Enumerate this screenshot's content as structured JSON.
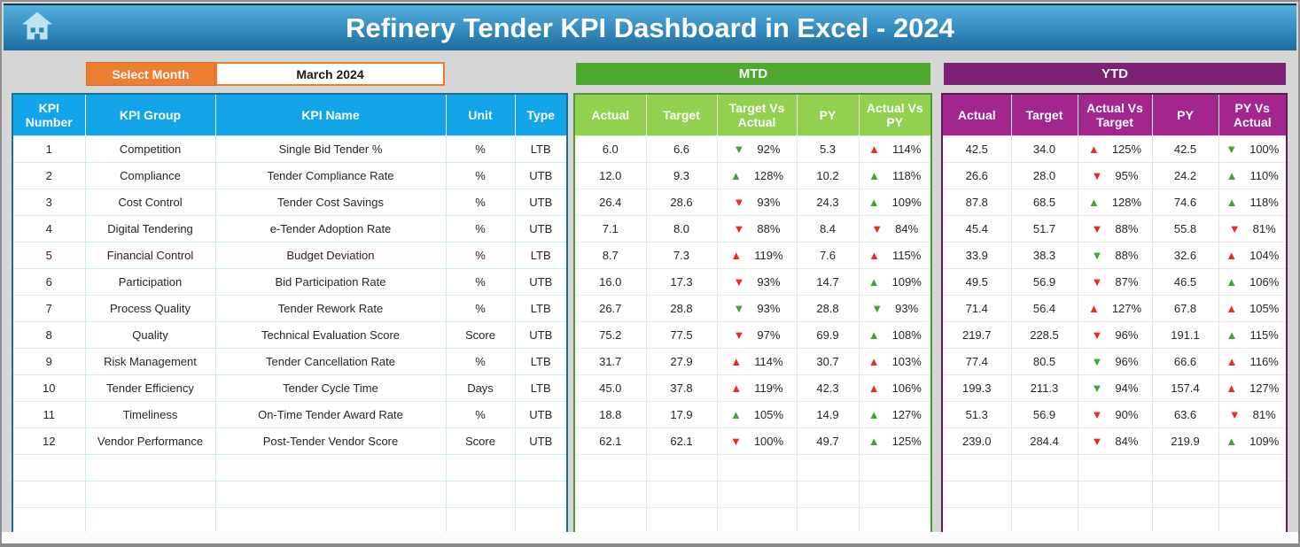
{
  "header": {
    "title": "Refinery Tender KPI Dashboard in Excel - 2024"
  },
  "controls": {
    "select_month_label": "Select Month",
    "selected_month": "March 2024"
  },
  "sections": {
    "mtd_label": "MTD",
    "ytd_label": "YTD"
  },
  "kpi_table": {
    "headers": [
      "KPI Number",
      "KPI Group",
      "KPI Name",
      "Unit",
      "Type"
    ],
    "mtd_headers": [
      "Actual",
      "Target",
      "Target Vs Actual",
      "PY",
      "Actual Vs PY"
    ],
    "ytd_headers": [
      "Actual",
      "Target",
      "Actual Vs Target",
      "PY",
      "PY Vs Actual"
    ],
    "empty_rows": 3,
    "rows": [
      {
        "num": "1",
        "group": "Competition",
        "name": "Single Bid Tender %",
        "unit": "%",
        "type": "LTB",
        "mtd": {
          "actual": "6.0",
          "target": "6.6",
          "tva": {
            "dir": "down",
            "color": "green",
            "value": "92%"
          },
          "py": "5.3",
          "avp": {
            "dir": "up",
            "color": "red",
            "value": "114%"
          }
        },
        "ytd": {
          "actual": "42.5",
          "target": "34.0",
          "avt": {
            "dir": "up",
            "color": "red",
            "value": "125%"
          },
          "py": "42.5",
          "pva": {
            "dir": "down",
            "color": "green",
            "value": "100%"
          }
        }
      },
      {
        "num": "2",
        "group": "Compliance",
        "name": "Tender Compliance Rate",
        "unit": "%",
        "type": "UTB",
        "mtd": {
          "actual": "12.0",
          "target": "9.3",
          "tva": {
            "dir": "up",
            "color": "green",
            "value": "128%"
          },
          "py": "10.2",
          "avp": {
            "dir": "up",
            "color": "green",
            "value": "118%"
          }
        },
        "ytd": {
          "actual": "26.6",
          "target": "28.0",
          "avt": {
            "dir": "down",
            "color": "red",
            "value": "95%"
          },
          "py": "24.2",
          "pva": {
            "dir": "up",
            "color": "green",
            "value": "110%"
          }
        }
      },
      {
        "num": "3",
        "group": "Cost Control",
        "name": "Tender Cost Savings",
        "unit": "%",
        "type": "UTB",
        "mtd": {
          "actual": "26.4",
          "target": "28.6",
          "tva": {
            "dir": "down",
            "color": "red",
            "value": "93%"
          },
          "py": "24.3",
          "avp": {
            "dir": "up",
            "color": "green",
            "value": "109%"
          }
        },
        "ytd": {
          "actual": "87.8",
          "target": "68.5",
          "avt": {
            "dir": "up",
            "color": "green",
            "value": "128%"
          },
          "py": "74.6",
          "pva": {
            "dir": "up",
            "color": "green",
            "value": "118%"
          }
        }
      },
      {
        "num": "4",
        "group": "Digital Tendering",
        "name": "e-Tender Adoption Rate",
        "unit": "%",
        "type": "UTB",
        "mtd": {
          "actual": "7.1",
          "target": "8.0",
          "tva": {
            "dir": "down",
            "color": "red",
            "value": "88%"
          },
          "py": "8.4",
          "avp": {
            "dir": "down",
            "color": "red",
            "value": "84%"
          }
        },
        "ytd": {
          "actual": "45.4",
          "target": "51.7",
          "avt": {
            "dir": "down",
            "color": "red",
            "value": "88%"
          },
          "py": "55.8",
          "pva": {
            "dir": "down",
            "color": "red",
            "value": "81%"
          }
        }
      },
      {
        "num": "5",
        "group": "Financial Control",
        "name": "Budget Deviation",
        "unit": "%",
        "type": "LTB",
        "mtd": {
          "actual": "8.7",
          "target": "7.3",
          "tva": {
            "dir": "up",
            "color": "red",
            "value": "119%"
          },
          "py": "7.6",
          "avp": {
            "dir": "up",
            "color": "red",
            "value": "115%"
          }
        },
        "ytd": {
          "actual": "33.9",
          "target": "38.3",
          "avt": {
            "dir": "down",
            "color": "green",
            "value": "88%"
          },
          "py": "32.6",
          "pva": {
            "dir": "up",
            "color": "red",
            "value": "104%"
          }
        }
      },
      {
        "num": "6",
        "group": "Participation",
        "name": "Bid Participation Rate",
        "unit": "%",
        "type": "UTB",
        "mtd": {
          "actual": "16.0",
          "target": "17.3",
          "tva": {
            "dir": "down",
            "color": "red",
            "value": "93%"
          },
          "py": "14.7",
          "avp": {
            "dir": "up",
            "color": "green",
            "value": "109%"
          }
        },
        "ytd": {
          "actual": "49.5",
          "target": "56.9",
          "avt": {
            "dir": "down",
            "color": "red",
            "value": "87%"
          },
          "py": "46.5",
          "pva": {
            "dir": "up",
            "color": "green",
            "value": "106%"
          }
        }
      },
      {
        "num": "7",
        "group": "Process Quality",
        "name": "Tender Rework Rate",
        "unit": "%",
        "type": "LTB",
        "mtd": {
          "actual": "26.7",
          "target": "28.8",
          "tva": {
            "dir": "down",
            "color": "green",
            "value": "93%"
          },
          "py": "28.8",
          "avp": {
            "dir": "down",
            "color": "green",
            "value": "93%"
          }
        },
        "ytd": {
          "actual": "71.4",
          "target": "56.4",
          "avt": {
            "dir": "up",
            "color": "red",
            "value": "127%"
          },
          "py": "67.8",
          "pva": {
            "dir": "up",
            "color": "red",
            "value": "105%"
          }
        }
      },
      {
        "num": "8",
        "group": "Quality",
        "name": "Technical Evaluation Score",
        "unit": "Score",
        "type": "UTB",
        "mtd": {
          "actual": "75.2",
          "target": "77.5",
          "tva": {
            "dir": "down",
            "color": "red",
            "value": "97%"
          },
          "py": "69.9",
          "avp": {
            "dir": "up",
            "color": "green",
            "value": "108%"
          }
        },
        "ytd": {
          "actual": "219.7",
          "target": "228.5",
          "avt": {
            "dir": "down",
            "color": "red",
            "value": "96%"
          },
          "py": "191.1",
          "pva": {
            "dir": "up",
            "color": "green",
            "value": "115%"
          }
        }
      },
      {
        "num": "9",
        "group": "Risk Management",
        "name": "Tender Cancellation Rate",
        "unit": "%",
        "type": "LTB",
        "mtd": {
          "actual": "31.7",
          "target": "27.9",
          "tva": {
            "dir": "up",
            "color": "red",
            "value": "114%"
          },
          "py": "30.7",
          "avp": {
            "dir": "up",
            "color": "red",
            "value": "103%"
          }
        },
        "ytd": {
          "actual": "77.4",
          "target": "80.5",
          "avt": {
            "dir": "down",
            "color": "green",
            "value": "96%"
          },
          "py": "66.6",
          "pva": {
            "dir": "up",
            "color": "red",
            "value": "116%"
          }
        }
      },
      {
        "num": "10",
        "group": "Tender Efficiency",
        "name": "Tender Cycle Time",
        "unit": "Days",
        "type": "LTB",
        "mtd": {
          "actual": "45.0",
          "target": "37.8",
          "tva": {
            "dir": "up",
            "color": "red",
            "value": "119%"
          },
          "py": "42.3",
          "avp": {
            "dir": "up",
            "color": "red",
            "value": "106%"
          }
        },
        "ytd": {
          "actual": "199.3",
          "target": "211.3",
          "avt": {
            "dir": "down",
            "color": "green",
            "value": "94%"
          },
          "py": "157.4",
          "pva": {
            "dir": "up",
            "color": "red",
            "value": "127%"
          }
        }
      },
      {
        "num": "11",
        "group": "Timeliness",
        "name": "On-Time Tender Award Rate",
        "unit": "%",
        "type": "UTB",
        "mtd": {
          "actual": "18.8",
          "target": "17.9",
          "tva": {
            "dir": "up",
            "color": "green",
            "value": "105%"
          },
          "py": "14.9",
          "avp": {
            "dir": "up",
            "color": "green",
            "value": "127%"
          }
        },
        "ytd": {
          "actual": "51.3",
          "target": "56.9",
          "avt": {
            "dir": "down",
            "color": "red",
            "value": "90%"
          },
          "py": "63.6",
          "pva": {
            "dir": "down",
            "color": "red",
            "value": "81%"
          }
        }
      },
      {
        "num": "12",
        "group": "Vendor Performance",
        "name": "Post-Tender Vendor Score",
        "unit": "Score",
        "type": "UTB",
        "mtd": {
          "actual": "62.1",
          "target": "62.1",
          "tva": {
            "dir": "down",
            "color": "red",
            "value": "100%"
          },
          "py": "49.7",
          "avp": {
            "dir": "up",
            "color": "green",
            "value": "125%"
          }
        },
        "ytd": {
          "actual": "239.0",
          "target": "284.4",
          "avt": {
            "dir": "down",
            "color": "red",
            "value": "84%"
          },
          "py": "219.9",
          "pva": {
            "dir": "up",
            "color": "green",
            "value": "109%"
          }
        }
      }
    ]
  },
  "colors": {
    "topbar_gradient_top": "#56aedb",
    "topbar_gradient_bottom": "#1d6c9d",
    "orange_accent": "#ed7d31",
    "kpi_header_blue": "#12a5e9",
    "mtd_bar_green": "#4ea72e",
    "mtd_subheader_green": "#92d050",
    "ytd_bar_purple": "#7b2173",
    "ytd_subheader_magenta": "#a3268e",
    "arrow_red": "#ee2a24",
    "arrow_green": "#3ea437"
  }
}
